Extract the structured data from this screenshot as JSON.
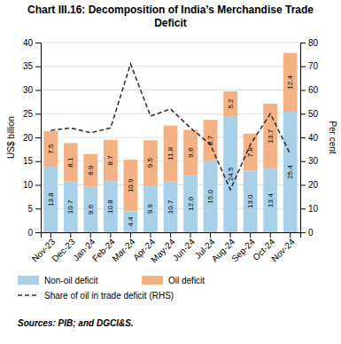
{
  "chart_data": {
    "type": "bar",
    "title": "Chart III.16: Decomposition of India’s Merchandise Trade Deficit",
    "categories": [
      "Nov-23",
      "Dec-23",
      "Jan-24",
      "Feb-24",
      "Mar-24",
      "Apr-24",
      "May-24",
      "Jun-24",
      "Jul-24",
      "Aug-24",
      "Sep-24",
      "Oct-24",
      "Nov-24"
    ],
    "series": [
      {
        "name": "Non-oil deficit",
        "color": "#a8d0e8",
        "data_labels": true,
        "values": [
          13.8,
          10.7,
          9.6,
          10.8,
          4.4,
          9.9,
          10.7,
          12.0,
          15.0,
          24.5,
          13.0,
          13.4,
          25.4
        ],
        "value_labels": [
          "13.8",
          "10.7",
          "9.6",
          "10.8",
          "4.4",
          "9.9",
          "10.7",
          "12.0",
          "15.0",
          "24.5",
          "13.0",
          "13.4",
          "25.4"
        ]
      },
      {
        "name": "Oil deficit",
        "color": "#f4b183",
        "data_labels": true,
        "values": [
          7.5,
          8.1,
          6.9,
          8.7,
          10.9,
          9.5,
          11.8,
          9.6,
          8.7,
          5.2,
          7.8,
          13.7,
          12.4
        ]
      },
      {
        "name": "Share of oil in trade deficit (RHS)",
        "type": "line",
        "axis": "y2",
        "color": "#333333",
        "line_style": "dashed",
        "values": [
          43,
          44,
          42,
          44,
          71,
          49,
          52,
          44,
          37,
          18,
          37,
          50,
          33
        ]
      }
    ],
    "stacked": true,
    "ylabel": "US$ billion",
    "y2label": "Per cent",
    "ylim": [
      0,
      40
    ],
    "yticks": [
      0,
      5,
      10,
      15,
      20,
      25,
      30,
      35,
      40
    ],
    "y2lim": [
      0,
      80
    ],
    "y2ticks": [
      0,
      10,
      20,
      30,
      40,
      50,
      60,
      70,
      80
    ],
    "grid": true,
    "legend": "bottom",
    "annotations": [
      "Sources: PIB; and DGCI&S."
    ]
  }
}
